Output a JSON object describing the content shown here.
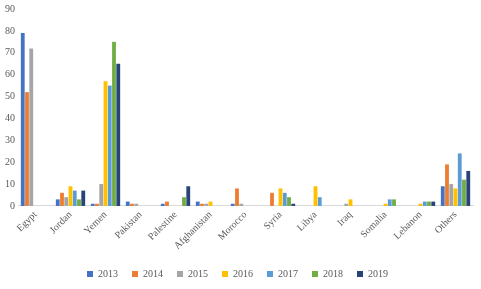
{
  "chart_data": {
    "type": "bar",
    "categories": [
      "Egypt",
      "Jordan",
      "Yemen",
      "Pakistan",
      "Palestine",
      "Afghanistan",
      "Morocco",
      "Syria",
      "Libya",
      "Iraq",
      "Somalia",
      "Lebanon",
      "Others"
    ],
    "series": [
      {
        "name": "2013",
        "color": "#4472c4",
        "values": [
          79,
          3,
          1,
          2,
          1,
          2,
          1,
          0,
          0,
          0,
          0,
          0,
          9
        ]
      },
      {
        "name": "2014",
        "color": "#ed7d31",
        "values": [
          52,
          6,
          1,
          1,
          2,
          1,
          8,
          6,
          0,
          0,
          0,
          0,
          19
        ]
      },
      {
        "name": "2015",
        "color": "#a5a5a5",
        "values": [
          72,
          4,
          10,
          1,
          0,
          1,
          1,
          0,
          0,
          1,
          0,
          0,
          10
        ]
      },
      {
        "name": "2016",
        "color": "#ffc000",
        "values": [
          0,
          9,
          57,
          0,
          0,
          2,
          0,
          8,
          9,
          3,
          1,
          1,
          8
        ]
      },
      {
        "name": "2017",
        "color": "#5b9bd5",
        "values": [
          0,
          7,
          55,
          0,
          0,
          0,
          0,
          6,
          4,
          0,
          3,
          2,
          24
        ]
      },
      {
        "name": "2018",
        "color": "#70ad47",
        "values": [
          0,
          3,
          75,
          0,
          4,
          0,
          0,
          4,
          0,
          0,
          3,
          2,
          12
        ]
      },
      {
        "name": "2019",
        "color": "#264478",
        "values": [
          0,
          7,
          65,
          0,
          9,
          0,
          0,
          1,
          0,
          0,
          0,
          2,
          16
        ]
      }
    ],
    "ylim": [
      0,
      90
    ],
    "yticks": [
      0,
      10,
      20,
      30,
      40,
      50,
      60,
      70,
      80,
      90
    ],
    "grid": false,
    "legend": "bottom"
  }
}
